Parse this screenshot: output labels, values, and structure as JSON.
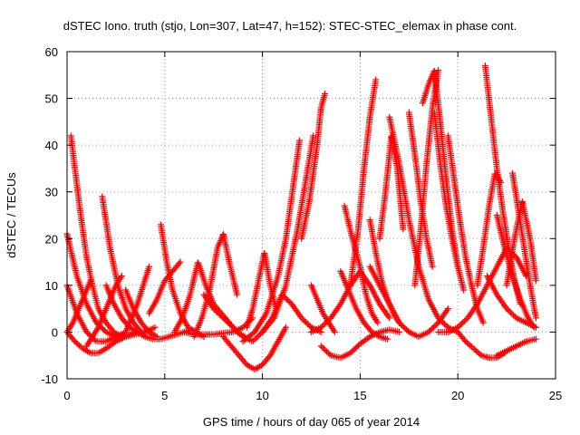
{
  "chart_data": {
    "type": "scatter",
    "title": "dSTEC Iono. truth (stjo, Lon=307, Lat=47, h=152): STEC-STEC_elemax in phase cont.",
    "xlabel": "GPS time / hours of day 065 of year 2014",
    "ylabel": "dSTEC  / TECUs",
    "xlim": [
      0,
      25
    ],
    "ylim": [
      -10,
      60
    ],
    "xticks": [
      0,
      5,
      10,
      15,
      20,
      25
    ],
    "yticks": [
      -10,
      0,
      10,
      20,
      30,
      40,
      50,
      60
    ],
    "grid": true,
    "marker": "+",
    "color": "#ff0000",
    "arcs": [
      {
        "x": [
          0.0,
          0.5,
          1.0,
          1.5,
          2.0,
          2.5,
          3.0,
          3.5
        ],
        "y": [
          21,
          12,
          6,
          2,
          0,
          -1,
          -1,
          0
        ]
      },
      {
        "x": [
          0.0,
          0.5,
          1.0,
          1.5,
          2.0,
          2.5,
          3.0
        ],
        "y": [
          10,
          4,
          0,
          -2,
          -2,
          -1,
          0
        ]
      },
      {
        "x": [
          0.0,
          0.4,
          0.8,
          1.2,
          1.6,
          2.0,
          2.5,
          3.0,
          3.5,
          4.0,
          4.5
        ],
        "y": [
          0,
          -2,
          -3.5,
          -4.5,
          -4.5,
          -3.5,
          -2,
          -1,
          -0.5,
          0,
          1
        ]
      },
      {
        "x": [
          0.2,
          0.4,
          0.7,
          1.0,
          1.3,
          1.6,
          2.0,
          2.4,
          2.8
        ],
        "y": [
          42,
          35,
          25,
          16,
          10,
          5,
          2,
          0,
          -1
        ]
      },
      {
        "x": [
          0.0,
          0.3,
          0.6,
          0.9,
          1.2
        ],
        "y": [
          0,
          2,
          5,
          8,
          11
        ]
      },
      {
        "x": [
          1.8,
          2.2,
          2.6,
          3.0,
          3.4,
          3.8
        ],
        "y": [
          29,
          18,
          10,
          5,
          2,
          0
        ]
      },
      {
        "x": [
          1.0,
          1.3,
          1.6,
          1.9,
          2.2,
          2.5,
          2.8
        ],
        "y": [
          -3,
          -1,
          1,
          4,
          7,
          10,
          12
        ]
      },
      {
        "x": [
          2.0,
          2.4,
          2.8,
          3.2,
          3.6,
          4.0
        ],
        "y": [
          10,
          6,
          3,
          1,
          0,
          -1
        ]
      },
      {
        "x": [
          3.0,
          3.4,
          3.8,
          4.2,
          4.6
        ],
        "y": [
          9,
          5,
          2,
          0,
          -1
        ]
      },
      {
        "x": [
          3.0,
          3.3,
          3.6,
          3.9,
          4.2
        ],
        "y": [
          0,
          3,
          6,
          10,
          14
        ]
      },
      {
        "x": [
          4.0,
          4.4,
          4.8,
          5.2,
          5.6,
          6.0,
          6.4
        ],
        "y": [
          -1,
          -1.5,
          -1.5,
          -1,
          -0.5,
          0,
          0.5
        ]
      },
      {
        "x": [
          4.8,
          5.1,
          5.4,
          5.8,
          6.2,
          6.6,
          7.0
        ],
        "y": [
          23,
          15,
          9,
          4,
          1,
          0,
          -1
        ]
      },
      {
        "x": [
          4.2,
          4.6,
          5.0,
          5.4,
          5.8
        ],
        "y": [
          4,
          7,
          11,
          13,
          15
        ]
      },
      {
        "x": [
          5.5,
          5.9,
          6.3,
          6.7,
          7.1,
          7.5,
          7.9,
          8.3,
          8.7,
          9.1
        ],
        "y": [
          0,
          3,
          8,
          15,
          10,
          6,
          4,
          2,
          0,
          -1
        ]
      },
      {
        "x": [
          6.5,
          6.9,
          7.3,
          7.7,
          8.0,
          8.3,
          8.7
        ],
        "y": [
          -1,
          3,
          9,
          18,
          21,
          15,
          8
        ]
      },
      {
        "x": [
          7.0,
          7.5,
          8.0,
          8.5,
          9.0,
          9.5,
          10.0,
          10.5
        ],
        "y": [
          8,
          5,
          3,
          1,
          -1,
          -2,
          0,
          3
        ]
      },
      {
        "x": [
          6.0,
          6.5,
          7.0,
          7.5,
          8.0,
          8.5,
          9.0,
          9.5
        ],
        "y": [
          0,
          -0.5,
          -0.5,
          -0.5,
          -0.2,
          0,
          1,
          3
        ]
      },
      {
        "x": [
          8.0,
          8.4,
          8.8,
          9.2,
          9.6,
          10.0,
          10.4,
          10.8,
          11.2
        ],
        "y": [
          -1,
          -3,
          -5,
          -7,
          -8,
          -7,
          -5,
          -2,
          1
        ]
      },
      {
        "x": [
          9.2,
          9.5,
          9.8,
          10.1,
          10.4,
          10.7
        ],
        "y": [
          1,
          5,
          11,
          17,
          10,
          5
        ]
      },
      {
        "x": [
          9.0,
          9.6,
          10.2,
          10.8,
          11.2,
          11.6,
          11.9
        ],
        "y": [
          -2,
          0,
          4,
          12,
          20,
          32,
          41
        ]
      },
      {
        "x": [
          10.0,
          10.6,
          11.2,
          11.8,
          12.2,
          12.6
        ],
        "y": [
          0,
          3,
          10,
          22,
          32,
          42
        ]
      },
      {
        "x": [
          10.5,
          11.0,
          11.5,
          12.0,
          12.5,
          13.0
        ],
        "y": [
          3,
          8,
          6,
          3,
          1,
          0
        ]
      },
      {
        "x": [
          12.0,
          12.4,
          12.8,
          13.0,
          13.2
        ],
        "y": [
          20,
          28,
          40,
          48,
          51
        ]
      },
      {
        "x": [
          12.5,
          12.8,
          13.1,
          13.4,
          13.7
        ],
        "y": [
          10,
          7,
          4,
          2,
          0
        ]
      },
      {
        "x": [
          13.0,
          13.5,
          14.0,
          14.5,
          15.0,
          15.5,
          16.0,
          16.5,
          17.0
        ],
        "y": [
          -3,
          -5,
          -5.5,
          -4.5,
          -2.5,
          -1,
          0,
          0.5,
          0
        ]
      },
      {
        "x": [
          12.5,
          13.0,
          13.5,
          14.0,
          14.5,
          15.0,
          15.5,
          16.0,
          16.5
        ],
        "y": [
          0,
          1,
          3,
          6,
          10,
          13,
          10,
          6,
          3
        ]
      },
      {
        "x": [
          14.0,
          14.4,
          14.8,
          15.2,
          15.6,
          16.0,
          16.4
        ],
        "y": [
          13,
          9,
          5,
          2,
          0,
          -1,
          -1.5
        ]
      },
      {
        "x": [
          14.2,
          14.6,
          15.0,
          15.3,
          15.6,
          15.9
        ],
        "y": [
          27,
          20,
          14,
          8,
          4,
          2
        ]
      },
      {
        "x": [
          14.5,
          14.9,
          15.2,
          15.5,
          15.8
        ],
        "y": [
          10,
          22,
          35,
          46,
          54
        ]
      },
      {
        "x": [
          15.5,
          15.8,
          16.1,
          16.4,
          16.7,
          17.0
        ],
        "y": [
          24,
          17,
          11,
          7,
          4,
          2
        ]
      },
      {
        "x": [
          16.0,
          16.3,
          16.6,
          16.9,
          17.2
        ],
        "y": [
          20,
          30,
          42,
          35,
          22
        ]
      },
      {
        "x": [
          16.5,
          17.0,
          17.5,
          18.0,
          18.5,
          19.0,
          19.5,
          20.0
        ],
        "y": [
          46,
          36,
          24,
          14,
          7,
          3,
          1,
          0
        ]
      },
      {
        "x": [
          15.5,
          16.0,
          16.5,
          17.0,
          17.5,
          18.0,
          18.5,
          19.0,
          19.5
        ],
        "y": [
          14,
          10,
          6,
          2,
          0,
          -1,
          0,
          2,
          5
        ]
      },
      {
        "x": [
          17.5,
          17.8,
          18.1,
          18.4,
          18.7
        ],
        "y": [
          47,
          38,
          28,
          20,
          14
        ]
      },
      {
        "x": [
          17.8,
          18.1,
          18.4,
          18.7,
          19.0
        ],
        "y": [
          10,
          22,
          36,
          48,
          56
        ]
      },
      {
        "x": [
          18.2,
          18.5,
          18.8,
          19.1,
          19.4,
          19.7,
          20.0
        ],
        "y": [
          49,
          53,
          56,
          45,
          33,
          22,
          14
        ]
      },
      {
        "x": [
          18.8,
          19.1,
          19.4,
          19.7,
          20.0,
          20.3
        ],
        "y": [
          47,
          36,
          27,
          20,
          14,
          9
        ]
      },
      {
        "x": [
          19.5,
          19.8,
          20.1,
          20.4,
          20.7,
          21.0,
          21.3
        ],
        "y": [
          42,
          33,
          24,
          16,
          10,
          5,
          2
        ]
      },
      {
        "x": [
          19.0,
          19.5,
          20.0,
          20.5,
          21.0,
          21.5,
          22.0,
          22.5,
          23.0,
          23.5
        ],
        "y": [
          0,
          0,
          1,
          3,
          6,
          10,
          14,
          18,
          16,
          12
        ]
      },
      {
        "x": [
          20.0,
          20.4,
          20.8,
          21.2,
          21.6,
          22.0,
          22.4
        ],
        "y": [
          0,
          -2,
          -3.5,
          -5,
          -5.5,
          -5.5,
          -4.5
        ]
      },
      {
        "x": [
          21.4,
          21.7,
          22.0,
          22.3,
          22.6,
          22.9,
          23.2
        ],
        "y": [
          57,
          46,
          35,
          26,
          18,
          11,
          6
        ]
      },
      {
        "x": [
          21.0,
          21.3,
          21.6,
          21.9,
          22.2
        ],
        "y": [
          10,
          18,
          27,
          34,
          32
        ]
      },
      {
        "x": [
          22.0,
          22.4,
          22.8,
          23.2,
          23.6,
          23.9
        ],
        "y": [
          25,
          18,
          12,
          7,
          3,
          1
        ]
      },
      {
        "x": [
          22.8,
          23.1,
          23.4,
          23.7,
          24.0
        ],
        "y": [
          34,
          26,
          18,
          10,
          3
        ]
      },
      {
        "x": [
          22.5,
          22.9,
          23.3,
          23.7,
          24.0
        ],
        "y": [
          10,
          20,
          28,
          20,
          11
        ]
      },
      {
        "x": [
          22.0,
          22.5,
          23.0,
          23.5,
          24.0
        ],
        "y": [
          -5,
          -4,
          -3,
          -2,
          -1.5
        ]
      },
      {
        "x": [
          21.5,
          22.0,
          22.5,
          23.0,
          23.5,
          24.0
        ],
        "y": [
          12,
          8,
          5,
          3,
          2,
          1
        ]
      }
    ]
  }
}
